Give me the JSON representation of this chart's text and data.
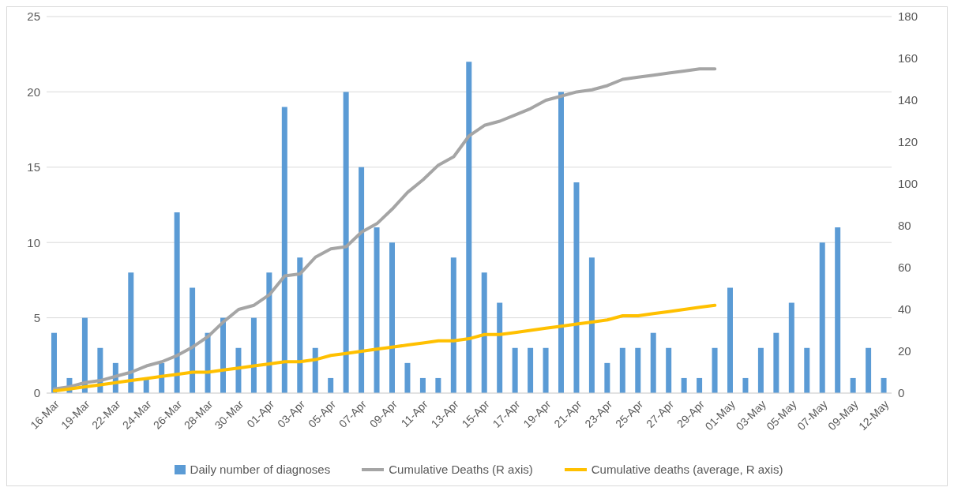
{
  "chart_data": {
    "type": "bar",
    "categories": [
      "16-Mar",
      null,
      "19-Mar",
      null,
      "22-Mar",
      null,
      "24-Mar",
      null,
      "26-Mar",
      null,
      "28-Mar",
      null,
      "30-Mar",
      null,
      "01-Apr",
      null,
      "03-Apr",
      null,
      "05-Apr",
      null,
      "07-Apr",
      null,
      "09-Apr",
      null,
      "11-Apr",
      null,
      "13-Apr",
      null,
      "15-Apr",
      null,
      "17-Apr",
      null,
      "19-Apr",
      null,
      "21-Apr",
      null,
      "23-Apr",
      null,
      "25-Apr",
      null,
      "27-Apr",
      null,
      "29-Apr",
      null,
      "01-May",
      null,
      "03-May",
      null,
      "05-May",
      null,
      "07-May",
      null,
      "09-May",
      null,
      "12-May"
    ],
    "series": [
      {
        "name": "Daily number of diagnoses",
        "color": "#5b9bd5",
        "values": [
          4,
          1,
          5,
          3,
          2,
          8,
          1,
          2,
          12,
          7,
          4,
          5,
          3,
          5,
          8,
          19,
          9,
          3,
          1,
          20,
          15,
          11,
          10,
          2,
          1,
          1,
          9,
          22,
          8,
          6,
          3,
          3,
          3,
          20,
          14,
          9,
          2,
          3,
          3,
          4,
          3,
          1,
          1,
          3,
          7,
          1,
          3,
          4,
          6,
          3,
          10,
          11,
          1,
          3,
          1
        ]
      },
      {
        "name": "Cumulative Deaths (R axis)",
        "type": "line",
        "axis": "y2",
        "color": "#a5a5a5",
        "values": [
          2,
          3,
          5,
          6,
          8,
          10,
          13,
          15,
          18,
          22,
          27,
          34,
          40,
          42,
          47,
          56,
          57,
          65,
          69,
          70,
          77,
          81,
          88,
          96,
          102,
          109,
          113,
          123,
          128,
          130,
          133,
          136,
          140,
          142,
          144,
          145,
          147,
          150,
          151,
          152,
          153,
          154,
          155,
          155,
          null,
          null,
          null,
          null,
          null,
          null,
          null,
          null,
          null,
          null,
          null
        ]
      },
      {
        "name": "Cumulative deaths (average, R axis)",
        "type": "line",
        "axis": "y2",
        "color": "#ffc000",
        "values": [
          1,
          2,
          3,
          4,
          5,
          6,
          7,
          8,
          9,
          10,
          10,
          11,
          12,
          13,
          14,
          15,
          15,
          16,
          18,
          19,
          20,
          21,
          22,
          23,
          24,
          25,
          25,
          26,
          28,
          28,
          29,
          30,
          31,
          32,
          33,
          34,
          35,
          37,
          37,
          38,
          39,
          40,
          41,
          42,
          null,
          null,
          null,
          null,
          null,
          null,
          null,
          null,
          null,
          null,
          null
        ]
      }
    ],
    "ylim": [
      0,
      25
    ],
    "yticks": [
      0,
      5,
      10,
      15,
      20,
      25
    ],
    "y2lim": [
      0,
      180
    ],
    "y2ticks": [
      0,
      20,
      40,
      60,
      80,
      100,
      120,
      140,
      160,
      180
    ],
    "grid": "y",
    "legend": "bottom",
    "marker": "none",
    "line_style": "solid"
  }
}
